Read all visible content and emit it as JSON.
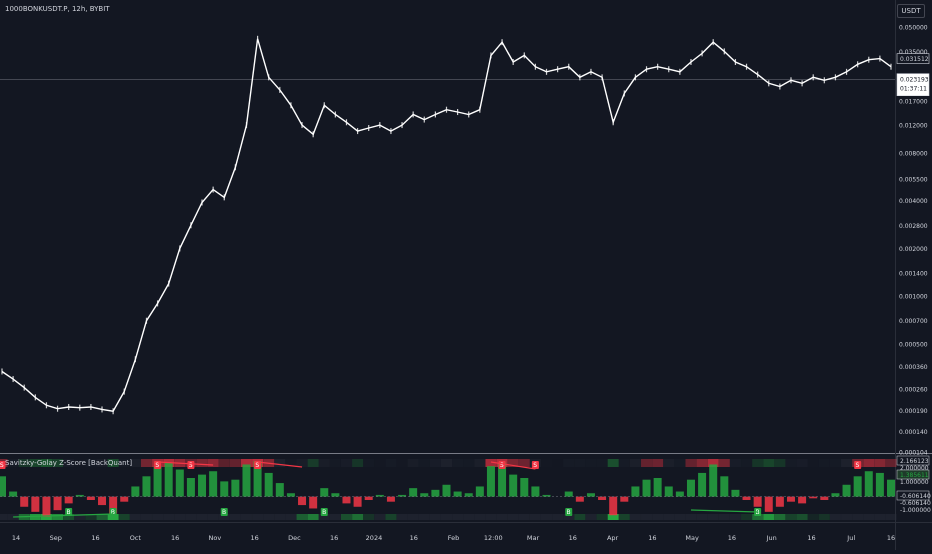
{
  "header": {
    "symbol_title": "1000BONKUSDT.P, 12h, BYBIT",
    "currency_button": "USDT"
  },
  "indicator": {
    "title": "Savitzky-Golay Z-Score [BackQuant]"
  },
  "colors": {
    "background": "#131722",
    "text": "#d1d4dc",
    "bull": "#26a641",
    "bear": "#f23645",
    "price_line": "#ffffff"
  },
  "chart_data": [
    {
      "type": "line",
      "title": "",
      "y_scale": "log",
      "x": [
        "Aug 07",
        "Aug 14",
        "Aug 21",
        "Aug 28",
        "Sep 04",
        "Sep 11",
        "Sep 18",
        "Sep 25",
        "Oct 02",
        "Oct 09",
        "Oct 16",
        "Oct 20",
        "Oct 24",
        "Oct 28",
        "Nov 01",
        "Nov 05",
        "Nov 09",
        "Nov 13",
        "Nov 17",
        "Nov 21",
        "Nov 25",
        "Nov 29",
        "Dec 03",
        "Dec 07",
        "Dec 11",
        "Dec 15",
        "Dec 19",
        "Dec 23",
        "Dec 27",
        "Dec 31",
        "Jan 04",
        "Jan 08",
        "Jan 12",
        "Jan 16",
        "Jan 20",
        "Jan 24",
        "Jan 28",
        "Feb 01",
        "Feb 05",
        "Feb 09",
        "Feb 13",
        "Feb 17",
        "Feb 21",
        "Feb 25",
        "Mar 01",
        "Mar 04",
        "Mar 08",
        "Mar 12",
        "Mar 16",
        "Mar 20",
        "Mar 24",
        "Mar 28",
        "Apr 01",
        "Apr 05",
        "Apr 09",
        "Apr 13",
        "Apr 17",
        "Apr 21",
        "Apr 25",
        "Apr 29",
        "May 03",
        "May 07",
        "May 11",
        "May 15",
        "May 19",
        "May 23",
        "May 27",
        "May 31",
        "Jun 04",
        "Jun 08",
        "Jun 12",
        "Jun 16",
        "Jun 20",
        "Jun 24",
        "Jun 28",
        "Jul 02",
        "Jul 06",
        "Jul 10",
        "Jul 14",
        "Jul 18",
        "Jul 22"
      ],
      "values": [
        0.000335,
        0.0003,
        0.000265,
        0.00023,
        0.000205,
        0.000195,
        0.0002,
        0.000198,
        0.0002,
        0.000193,
        0.000188,
        0.00025,
        0.0004,
        0.0007,
        0.0009,
        0.0012,
        0.002,
        0.0028,
        0.0039,
        0.0047,
        0.0042,
        0.0065,
        0.012,
        0.042,
        0.024,
        0.02,
        0.016,
        0.012,
        0.0105,
        0.016,
        0.014,
        0.0125,
        0.011,
        0.0115,
        0.012,
        0.011,
        0.012,
        0.014,
        0.013,
        0.014,
        0.015,
        0.0145,
        0.014,
        0.015,
        0.033,
        0.04,
        0.03,
        0.033,
        0.028,
        0.026,
        0.027,
        0.028,
        0.024,
        0.026,
        0.024,
        0.0125,
        0.019,
        0.024,
        0.027,
        0.028,
        0.027,
        0.026,
        0.03,
        0.034,
        0.04,
        0.035,
        0.03,
        0.028,
        0.025,
        0.022,
        0.021,
        0.023,
        0.022,
        0.024,
        0.023,
        0.024,
        0.026,
        0.029,
        0.031,
        0.031512,
        0.028
      ],
      "y_ticks": [
        "0.050000",
        "0.035000",
        "0.023193",
        "0.017000",
        "0.012000",
        "0.008000",
        "0.005500",
        "0.004000",
        "0.002800",
        "0.002000",
        "0.001400",
        "0.001000",
        "0.000700",
        "0.000500",
        "0.000360",
        "0.000260",
        "0.000190",
        "0.000140",
        "0.000104"
      ],
      "last_price": "0.031512",
      "crosshair_price": "0.023193",
      "countdown": "01:37:11",
      "x_ticks": [
        "14",
        "Sep",
        "16",
        "Oct",
        "16",
        "Nov",
        "16",
        "Dec",
        "16",
        "2024",
        "16",
        "Feb",
        "12:00",
        "Mar",
        "16",
        "Apr",
        "16",
        "May",
        "16",
        "Jun",
        "16",
        "Jul",
        "16"
      ]
    },
    {
      "type": "bar",
      "title": "Savitzky-Golay Z-Score [BackQuant]",
      "x": [
        "Aug 07",
        "Aug 14",
        "Aug 21",
        "Aug 28",
        "Sep 04",
        "Sep 11",
        "Sep 18",
        "Sep 25",
        "Oct 02",
        "Oct 09",
        "Oct 16",
        "Oct 20",
        "Oct 24",
        "Oct 28",
        "Nov 01",
        "Nov 05",
        "Nov 09",
        "Nov 13",
        "Nov 17",
        "Nov 21",
        "Nov 25",
        "Nov 29",
        "Dec 03",
        "Dec 07",
        "Dec 11",
        "Dec 15",
        "Dec 19",
        "Dec 23",
        "Dec 27",
        "Dec 31",
        "Jan 04",
        "Jan 08",
        "Jan 12",
        "Jan 16",
        "Jan 20",
        "Jan 24",
        "Jan 28",
        "Feb 01",
        "Feb 05",
        "Feb 09",
        "Feb 13",
        "Feb 17",
        "Feb 21",
        "Feb 25",
        "Mar 01",
        "Mar 04",
        "Mar 08",
        "Mar 12",
        "Mar 16",
        "Mar 20",
        "Mar 24",
        "Mar 28",
        "Apr 01",
        "Apr 05",
        "Apr 09",
        "Apr 13",
        "Apr 17",
        "Apr 21",
        "Apr 25",
        "Apr 29",
        "May 03",
        "May 07",
        "May 11",
        "May 15",
        "May 19",
        "May 23",
        "May 27",
        "May 31",
        "Jun 04",
        "Jun 08",
        "Jun 12",
        "Jun 16",
        "Jun 20",
        "Jun 24",
        "Jun 28",
        "Jul 02",
        "Jul 06",
        "Jul 10",
        "Jul 14",
        "Jul 18",
        "Jul 22"
      ],
      "values": [
        1.2,
        0.3,
        -0.6,
        -0.9,
        -1.2,
        -0.8,
        -0.4,
        0.1,
        -0.2,
        -0.5,
        -1.0,
        -0.3,
        0.6,
        1.2,
        1.8,
        2.0,
        1.6,
        1.1,
        1.3,
        1.5,
        0.9,
        1.0,
        1.9,
        2.1,
        1.4,
        0.8,
        0.2,
        -0.5,
        -0.7,
        0.5,
        0.2,
        -0.4,
        -0.6,
        -0.2,
        0.1,
        -0.3,
        0.1,
        0.5,
        0.2,
        0.4,
        0.7,
        0.3,
        0.2,
        0.6,
        1.8,
        2.0,
        1.3,
        1.1,
        0.6,
        0.1,
        0.0,
        0.3,
        -0.3,
        0.2,
        -0.2,
        -1.1,
        -0.3,
        0.6,
        1.0,
        1.1,
        0.6,
        0.3,
        1.0,
        1.4,
        1.9,
        1.2,
        0.4,
        -0.2,
        -0.6,
        -0.9,
        -0.6,
        -0.3,
        -0.4,
        -0.1,
        -0.2,
        0.2,
        0.7,
        1.2,
        1.5,
        1.4,
        1.0
      ],
      "y_ticks": [
        "2.166123",
        "2.000000",
        "1.385611",
        "1.000000",
        "-0.606140",
        "-0.606140",
        "-1.000000"
      ],
      "markers": [
        {
          "label": "S",
          "x": "Aug 07"
        },
        {
          "label": "B",
          "x": "Sep 18"
        },
        {
          "label": "B",
          "x": "Oct 16"
        },
        {
          "label": "S",
          "x": "Nov 01"
        },
        {
          "label": "S",
          "x": "Nov 13"
        },
        {
          "label": "B",
          "x": "Nov 25"
        },
        {
          "label": "S",
          "x": "Dec 07"
        },
        {
          "label": "B",
          "x": "Dec 31"
        },
        {
          "label": "S",
          "x": "Mar 04"
        },
        {
          "label": "S",
          "x": "Mar 16"
        },
        {
          "label": "B",
          "x": "Mar 28"
        },
        {
          "label": "B",
          "x": "Jun 04"
        },
        {
          "label": "S",
          "x": "Jul 10"
        }
      ]
    }
  ]
}
